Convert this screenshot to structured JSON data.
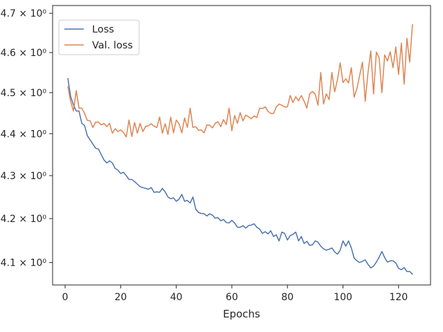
{
  "chart_data": {
    "type": "line",
    "xlabel": "Epochs",
    "ylabel": "",
    "yscale": "log",
    "xlim": [
      -4.5,
      131.5
    ],
    "ylim": [
      4.05,
      4.72
    ],
    "xticks": [
      0,
      20,
      40,
      60,
      80,
      100,
      120
    ],
    "yticks": [
      {
        "value": 4.1,
        "label": "4.1 × 10⁰"
      },
      {
        "value": 4.2,
        "label": "4.2 × 10⁰"
      },
      {
        "value": 4.3,
        "label": "4.3 × 10⁰"
      },
      {
        "value": 4.4,
        "label": "4.4 × 10⁰"
      },
      {
        "value": 4.5,
        "label": "4.5 × 10⁰"
      },
      {
        "value": 4.6,
        "label": "4.6 × 10⁰"
      },
      {
        "value": 4.7,
        "label": "4.7 × 10⁰"
      }
    ],
    "grid": false,
    "legend_position": "top-left",
    "series": [
      {
        "name": "Loss",
        "color": "#4c72b0",
        "x": [
          1,
          2,
          3,
          4,
          5,
          6,
          7,
          8,
          9,
          10,
          11,
          12,
          13,
          14,
          15,
          16,
          17,
          18,
          19,
          20,
          21,
          22,
          23,
          24,
          25,
          26,
          27,
          28,
          29,
          30,
          31,
          32,
          33,
          34,
          35,
          36,
          37,
          38,
          39,
          40,
          41,
          42,
          43,
          44,
          45,
          46,
          47,
          48,
          49,
          50,
          51,
          52,
          53,
          54,
          55,
          56,
          57,
          58,
          59,
          60,
          61,
          62,
          63,
          64,
          65,
          66,
          67,
          68,
          69,
          70,
          71,
          72,
          73,
          74,
          75,
          76,
          77,
          78,
          79,
          80,
          81,
          82,
          83,
          84,
          85,
          86,
          87,
          88,
          89,
          90,
          91,
          92,
          93,
          94,
          95,
          96,
          97,
          98,
          99,
          100,
          101,
          102,
          103,
          104,
          105,
          106,
          107,
          108,
          109,
          110,
          111,
          112,
          113,
          114,
          115,
          116,
          117,
          118,
          119,
          120,
          121,
          122,
          123,
          124,
          125
        ],
        "values": [
          4.535,
          4.49,
          4.47,
          4.455,
          4.455,
          4.425,
          4.42,
          4.395,
          4.385,
          4.375,
          4.365,
          4.363,
          4.35,
          4.337,
          4.33,
          4.335,
          4.33,
          4.317,
          4.313,
          4.305,
          4.308,
          4.3,
          4.291,
          4.291,
          4.286,
          4.28,
          4.274,
          4.272,
          4.27,
          4.268,
          4.272,
          4.261,
          4.262,
          4.261,
          4.27,
          4.262,
          4.25,
          4.246,
          4.248,
          4.24,
          4.245,
          4.256,
          4.24,
          4.242,
          4.236,
          4.25,
          4.222,
          4.214,
          4.212,
          4.211,
          4.206,
          4.211,
          4.208,
          4.201,
          4.202,
          4.195,
          4.198,
          4.191,
          4.19,
          4.196,
          4.19,
          4.18,
          4.18,
          4.184,
          4.178,
          4.184,
          4.185,
          4.188,
          4.18,
          4.176,
          4.166,
          4.17,
          4.165,
          4.172,
          4.159,
          4.163,
          4.149,
          4.169,
          4.166,
          4.151,
          4.161,
          4.164,
          4.169,
          4.149,
          4.159,
          4.143,
          4.148,
          4.139,
          4.14,
          4.149,
          4.146,
          4.137,
          4.131,
          4.128,
          4.13,
          4.133,
          4.124,
          4.119,
          4.128,
          4.149,
          4.137,
          4.149,
          4.133,
          4.11,
          4.104,
          4.1,
          4.103,
          4.106,
          4.096,
          4.088,
          4.092,
          4.101,
          4.112,
          4.125,
          4.111,
          4.101,
          4.104,
          4.104,
          4.099,
          4.087,
          4.084,
          4.089,
          4.08,
          4.08,
          4.074
        ]
      },
      {
        "name": "Val. loss",
        "color": "#dd8452",
        "x": [
          1,
          2,
          3,
          4,
          5,
          6,
          7,
          8,
          9,
          10,
          11,
          12,
          13,
          14,
          15,
          16,
          17,
          18,
          19,
          20,
          21,
          22,
          23,
          24,
          25,
          26,
          27,
          28,
          29,
          30,
          31,
          32,
          33,
          34,
          35,
          36,
          37,
          38,
          39,
          40,
          41,
          42,
          43,
          44,
          45,
          46,
          47,
          48,
          49,
          50,
          51,
          52,
          53,
          54,
          55,
          56,
          57,
          58,
          59,
          60,
          61,
          62,
          63,
          64,
          65,
          66,
          67,
          68,
          69,
          70,
          71,
          72,
          73,
          74,
          75,
          76,
          77,
          78,
          79,
          80,
          81,
          82,
          83,
          84,
          85,
          86,
          87,
          88,
          89,
          90,
          91,
          92,
          93,
          94,
          95,
          96,
          97,
          98,
          99,
          100,
          101,
          102,
          103,
          104,
          105,
          106,
          107,
          108,
          109,
          110,
          111,
          112,
          113,
          114,
          115,
          116,
          117,
          118,
          119,
          120,
          121,
          122,
          123,
          124,
          125
        ],
        "values": [
          4.515,
          4.478,
          4.455,
          4.505,
          4.462,
          4.462,
          4.449,
          4.432,
          4.431,
          4.415,
          4.428,
          4.428,
          4.421,
          4.425,
          4.417,
          4.425,
          4.401,
          4.412,
          4.405,
          4.409,
          4.403,
          4.392,
          4.433,
          4.393,
          4.427,
          4.401,
          4.425,
          4.405,
          4.418,
          4.419,
          4.424,
          4.418,
          4.415,
          4.44,
          4.401,
          4.424,
          4.398,
          4.44,
          4.402,
          4.433,
          4.424,
          4.402,
          4.438,
          4.415,
          4.462,
          4.415,
          4.417,
          4.408,
          4.409,
          4.402,
          4.421,
          4.421,
          4.414,
          4.425,
          4.429,
          4.417,
          4.434,
          4.422,
          4.462,
          4.407,
          4.444,
          4.425,
          4.451,
          4.431,
          4.445,
          4.441,
          4.436,
          4.443,
          4.439,
          4.462,
          4.461,
          4.465,
          4.454,
          4.449,
          4.449,
          4.465,
          4.472,
          4.469,
          4.465,
          4.465,
          4.493,
          4.476,
          4.49,
          4.48,
          4.493,
          4.479,
          4.462,
          4.497,
          4.503,
          4.496,
          4.469,
          4.55,
          4.472,
          4.497,
          4.483,
          4.55,
          4.502,
          4.532,
          4.574,
          4.525,
          4.534,
          4.524,
          4.562,
          4.489,
          4.51,
          4.543,
          4.576,
          4.479,
          4.55,
          4.604,
          4.497,
          4.601,
          4.587,
          4.5,
          4.594,
          4.579,
          4.602,
          4.562,
          4.614,
          4.545,
          4.624,
          4.521,
          4.636,
          4.576,
          4.671
        ]
      }
    ]
  }
}
